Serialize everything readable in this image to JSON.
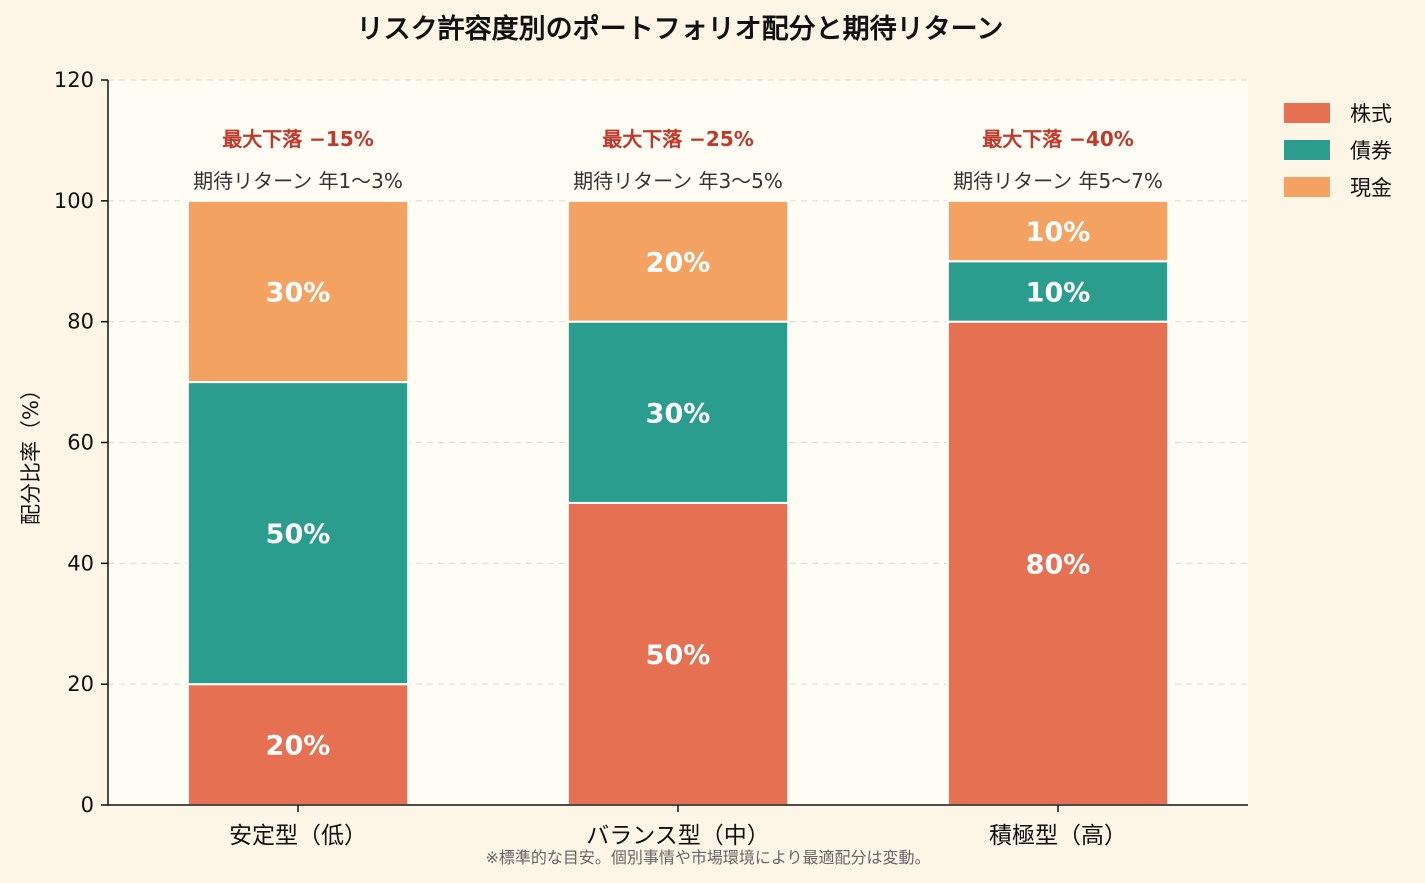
{
  "chart_data": {
    "type": "bar",
    "stacked": true,
    "title": "リスク許容度別のポートフォリオ配分と期待リターン",
    "ylabel": "配分比率（%）",
    "xlabel": "",
    "ylim": [
      0,
      120
    ],
    "yticks": [
      0,
      20,
      40,
      60,
      80,
      100,
      120
    ],
    "grid": true,
    "legend_position": "top-right",
    "categories": [
      "安定型（低）",
      "バランス型（中）",
      "積極型（高）"
    ],
    "series": [
      {
        "name": "株式",
        "color": "#e57052",
        "values": [
          20,
          50,
          80
        ],
        "labels": [
          "20%",
          "50%",
          "80%"
        ]
      },
      {
        "name": "債券",
        "color": "#2a9d8f",
        "values": [
          50,
          30,
          10
        ],
        "labels": [
          "50%",
          "30%",
          "10%"
        ]
      },
      {
        "name": "現金",
        "color": "#f4a261",
        "values": [
          30,
          20,
          10
        ],
        "labels": [
          "30%",
          "20%",
          "10%"
        ]
      }
    ],
    "annotations": [
      {
        "drawdown": "最大下落 −15%",
        "return": "期待リターン 年1〜3%"
      },
      {
        "drawdown": "最大下落 −25%",
        "return": "期待リターン 年3〜5%"
      },
      {
        "drawdown": "最大下落 −40%",
        "return": "期待リターン 年5〜7%"
      }
    ],
    "footnote": "※標準的な目安。個別事情や市場環境により最適配分は変動。",
    "colors": {
      "background": "#fdf6e6",
      "plot_background": "#fffcf4",
      "drawdown": "#c0392b"
    }
  }
}
